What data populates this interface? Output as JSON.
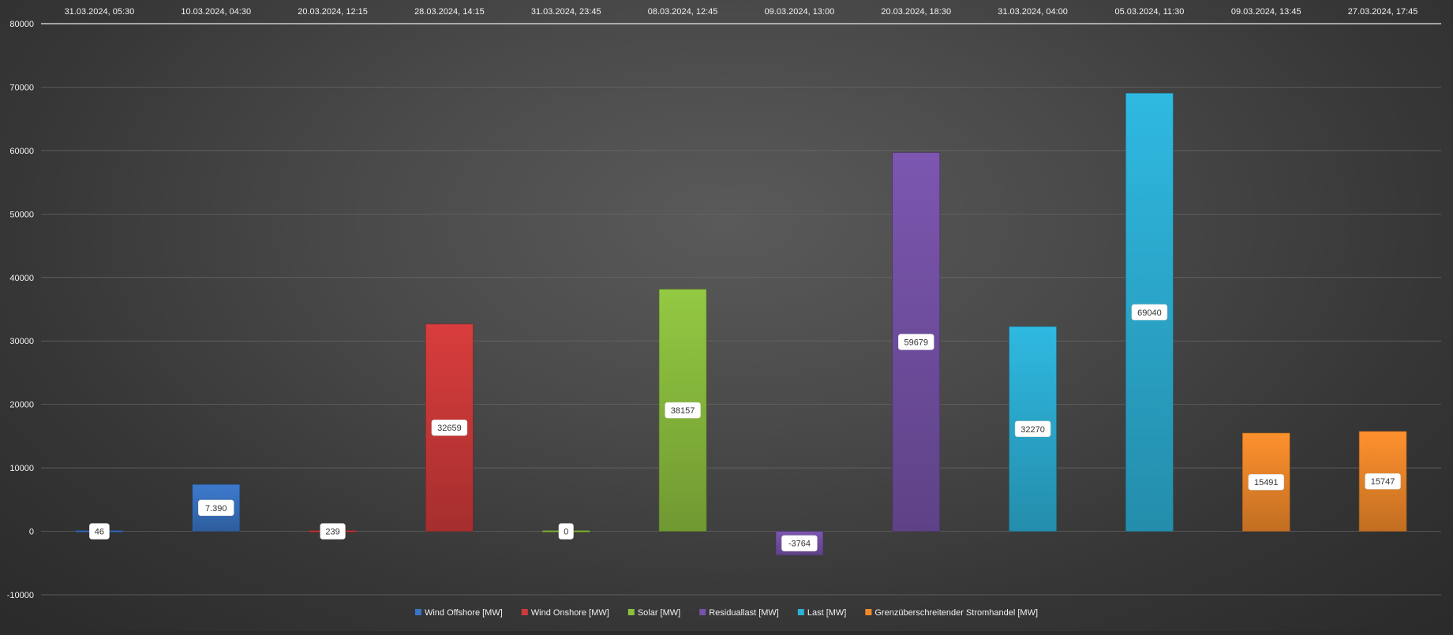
{
  "chart_data": {
    "type": "bar",
    "categories": [
      "31.03.2024, 05:30",
      "10.03.2024, 04:30",
      "20.03.2024, 12:15",
      "28.03.2024, 14:15",
      "31.03.2024, 23:45",
      "08.03.2024, 12:45",
      "09.03.2024, 13:00",
      "20.03.2024, 18:30",
      "31.03.2024, 04:00",
      "05.03.2024, 11:30",
      "09.03.2024, 13:45",
      "27.03.2024, 17:45"
    ],
    "values": [
      46,
      7390,
      239,
      32659,
      0,
      38157,
      -3764,
      59679,
      32270,
      69040,
      15491,
      15747
    ],
    "data_labels": [
      "46",
      "7.390",
      "239",
      "32659",
      "0",
      "38157",
      "-3764",
      "59679",
      "32270",
      "69040",
      "15491",
      "15747"
    ],
    "bar_series_index": [
      0,
      0,
      1,
      1,
      2,
      2,
      3,
      3,
      4,
      4,
      5,
      5
    ],
    "series": [
      {
        "name": "Wind Offshore [MW]",
        "color": "#3a74c4"
      },
      {
        "name": "Wind Onshore [MW]",
        "color": "#cf3a3a"
      },
      {
        "name": "Solar [MW]",
        "color": "#8cbf3f"
      },
      {
        "name": "Residuallast [MW]",
        "color": "#7652a8"
      },
      {
        "name": "Last [MW]",
        "color": "#2db0d6"
      },
      {
        "name": "Grenzüberschreitender Stromhandel [MW]",
        "color": "#f28a2b"
      }
    ],
    "ylim": [
      -10000,
      80000
    ],
    "yticks": [
      -10000,
      0,
      10000,
      20000,
      30000,
      40000,
      50000,
      60000,
      70000,
      80000
    ],
    "x_axis_position": "top",
    "grid": true,
    "legend_position": "bottom",
    "title": "",
    "xlabel": "",
    "ylabel": ""
  }
}
